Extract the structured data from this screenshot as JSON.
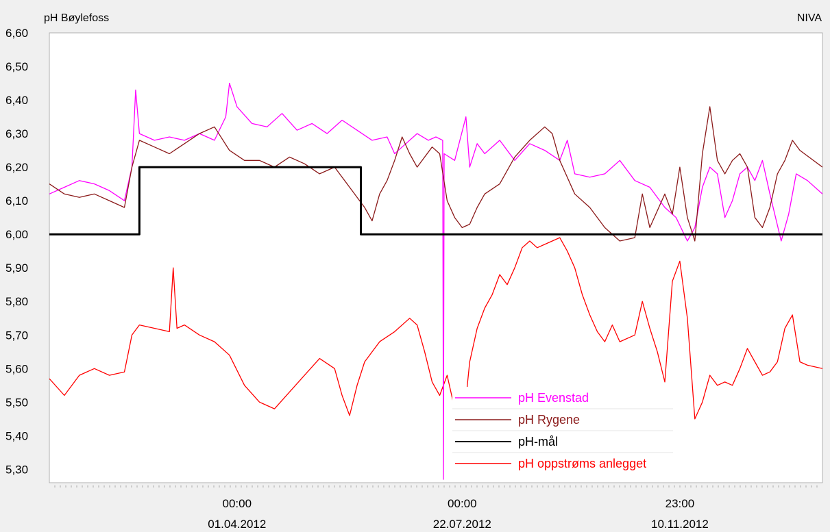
{
  "header": {
    "left_label": "pH Bøylefoss",
    "right_label": "NIVA"
  },
  "chart_data": {
    "type": "line",
    "ylim": [
      5.26,
      6.6
    ],
    "yticks": [
      "6,60",
      "6,50",
      "6,40",
      "6,30",
      "6,20",
      "6,10",
      "6,00",
      "5,90",
      "5,80",
      "5,70",
      "5,60",
      "5,50",
      "5,40",
      "5,30"
    ],
    "ytick_values": [
      6.6,
      6.5,
      6.4,
      6.3,
      6.2,
      6.1,
      6.0,
      5.9,
      5.8,
      5.7,
      5.6,
      5.5,
      5.4,
      5.3
    ],
    "xlim": [
      0,
      100
    ],
    "xticks": [
      {
        "x": 25,
        "time": "00:00",
        "date": "01.04.2012"
      },
      {
        "x": 55,
        "time": "00:00",
        "date": "22.07.2012"
      },
      {
        "x": 84,
        "time": "23:00",
        "date": "10.11.2012"
      }
    ],
    "grid": false,
    "legend_position": "bottom-center",
    "series": [
      {
        "name": "pH Evenstad",
        "color": "#ff00ff",
        "points": [
          [
            0,
            6.12
          ],
          [
            2,
            6.14
          ],
          [
            4,
            6.16
          ],
          [
            6,
            6.15
          ],
          [
            8,
            6.13
          ],
          [
            10,
            6.1
          ],
          [
            11,
            6.2
          ],
          [
            11.5,
            6.43
          ],
          [
            12,
            6.3
          ],
          [
            14,
            6.28
          ],
          [
            16,
            6.29
          ],
          [
            18,
            6.28
          ],
          [
            20,
            6.3
          ],
          [
            22,
            6.28
          ],
          [
            23.5,
            6.35
          ],
          [
            24,
            6.45
          ],
          [
            25,
            6.38
          ],
          [
            27,
            6.33
          ],
          [
            29,
            6.32
          ],
          [
            31,
            6.36
          ],
          [
            33,
            6.31
          ],
          [
            35,
            6.33
          ],
          [
            37,
            6.3
          ],
          [
            39,
            6.34
          ],
          [
            41,
            6.31
          ],
          [
            43,
            6.28
          ],
          [
            45,
            6.29
          ],
          [
            46,
            6.24
          ],
          [
            47,
            6.26
          ],
          [
            49,
            6.3
          ],
          [
            50.5,
            6.28
          ],
          [
            51.5,
            6.29
          ],
          [
            52.4,
            6.28
          ],
          [
            52.5,
            5.27
          ],
          [
            52.6,
            6.24
          ],
          [
            54,
            6.22
          ],
          [
            55.5,
            6.35
          ],
          [
            56,
            6.2
          ],
          [
            57,
            6.27
          ],
          [
            58,
            6.24
          ],
          [
            60,
            6.28
          ],
          [
            62,
            6.22
          ],
          [
            64,
            6.27
          ],
          [
            66,
            6.25
          ],
          [
            68,
            6.22
          ],
          [
            69,
            6.28
          ],
          [
            70,
            6.18
          ],
          [
            72,
            6.17
          ],
          [
            74,
            6.18
          ],
          [
            76,
            6.22
          ],
          [
            78,
            6.16
          ],
          [
            80,
            6.14
          ],
          [
            82,
            6.08
          ],
          [
            83.5,
            6.05
          ],
          [
            85,
            5.98
          ],
          [
            86,
            6.02
          ],
          [
            87,
            6.14
          ],
          [
            88,
            6.2
          ],
          [
            89,
            6.18
          ],
          [
            90,
            6.05
          ],
          [
            91,
            6.1
          ],
          [
            92,
            6.18
          ],
          [
            93,
            6.2
          ],
          [
            94,
            6.16
          ],
          [
            95,
            6.22
          ],
          [
            96,
            6.12
          ],
          [
            97.5,
            5.98
          ],
          [
            98.5,
            6.06
          ],
          [
            99.5,
            6.18
          ],
          [
            101,
            6.16
          ],
          [
            103,
            6.12
          ]
        ]
      },
      {
        "name": "pH Rygene",
        "color": "#8b1a1a",
        "points": [
          [
            0,
            6.15
          ],
          [
            2,
            6.12
          ],
          [
            4,
            6.11
          ],
          [
            6,
            6.12
          ],
          [
            8,
            6.1
          ],
          [
            10,
            6.08
          ],
          [
            11,
            6.2
          ],
          [
            12,
            6.28
          ],
          [
            14,
            6.26
          ],
          [
            16,
            6.24
          ],
          [
            18,
            6.27
          ],
          [
            20,
            6.3
          ],
          [
            22,
            6.32
          ],
          [
            24,
            6.25
          ],
          [
            26,
            6.22
          ],
          [
            28,
            6.22
          ],
          [
            30,
            6.2
          ],
          [
            32,
            6.23
          ],
          [
            34,
            6.21
          ],
          [
            36,
            6.18
          ],
          [
            38,
            6.2
          ],
          [
            40,
            6.14
          ],
          [
            42,
            6.08
          ],
          [
            43,
            6.04
          ],
          [
            44,
            6.12
          ],
          [
            45,
            6.16
          ],
          [
            46,
            6.22
          ],
          [
            47,
            6.29
          ],
          [
            48,
            6.24
          ],
          [
            49,
            6.2
          ],
          [
            51,
            6.26
          ],
          [
            52,
            6.24
          ],
          [
            53,
            6.1
          ],
          [
            54,
            6.05
          ],
          [
            55,
            6.02
          ],
          [
            56,
            6.03
          ],
          [
            57,
            6.08
          ],
          [
            58,
            6.12
          ],
          [
            60,
            6.15
          ],
          [
            62,
            6.23
          ],
          [
            64,
            6.28
          ],
          [
            66,
            6.32
          ],
          [
            67,
            6.3
          ],
          [
            68,
            6.22
          ],
          [
            70,
            6.12
          ],
          [
            72,
            6.08
          ],
          [
            74,
            6.02
          ],
          [
            76,
            5.98
          ],
          [
            78,
            5.99
          ],
          [
            79,
            6.12
          ],
          [
            80,
            6.02
          ],
          [
            82,
            6.12
          ],
          [
            83,
            6.06
          ],
          [
            84,
            6.2
          ],
          [
            85,
            6.05
          ],
          [
            86,
            5.98
          ],
          [
            87,
            6.24
          ],
          [
            88,
            6.38
          ],
          [
            89,
            6.22
          ],
          [
            90,
            6.18
          ],
          [
            91,
            6.22
          ],
          [
            92,
            6.24
          ],
          [
            93,
            6.2
          ],
          [
            94,
            6.05
          ],
          [
            95,
            6.02
          ],
          [
            96,
            6.08
          ],
          [
            97,
            6.18
          ],
          [
            98,
            6.22
          ],
          [
            99,
            6.28
          ],
          [
            100,
            6.25
          ],
          [
            103,
            6.2
          ]
        ]
      },
      {
        "name": "pH-mål",
        "color": "#000000",
        "points": [
          [
            0,
            6.0
          ],
          [
            12.0,
            6.0
          ],
          [
            12.0,
            6.2
          ],
          [
            41.5,
            6.2
          ],
          [
            41.5,
            6.0
          ],
          [
            103,
            6.0
          ]
        ]
      },
      {
        "name": "pH oppstrøms anlegget",
        "color": "#ff0000",
        "points": [
          [
            0,
            5.57
          ],
          [
            2,
            5.52
          ],
          [
            4,
            5.58
          ],
          [
            6,
            5.6
          ],
          [
            8,
            5.58
          ],
          [
            10,
            5.59
          ],
          [
            11,
            5.7
          ],
          [
            12,
            5.73
          ],
          [
            14,
            5.72
          ],
          [
            16,
            5.71
          ],
          [
            16.5,
            5.9
          ],
          [
            17,
            5.72
          ],
          [
            18,
            5.73
          ],
          [
            20,
            5.7
          ],
          [
            22,
            5.68
          ],
          [
            24,
            5.64
          ],
          [
            26,
            5.55
          ],
          [
            28,
            5.5
          ],
          [
            30,
            5.48
          ],
          [
            32,
            5.53
          ],
          [
            34,
            5.58
          ],
          [
            36,
            5.63
          ],
          [
            38,
            5.6
          ],
          [
            39,
            5.52
          ],
          [
            40,
            5.46
          ],
          [
            41,
            5.55
          ],
          [
            42,
            5.62
          ],
          [
            44,
            5.68
          ],
          [
            46,
            5.71
          ],
          [
            48,
            5.75
          ],
          [
            49,
            5.73
          ],
          [
            50,
            5.65
          ],
          [
            51,
            5.56
          ],
          [
            52,
            5.52
          ],
          [
            53,
            5.58
          ],
          [
            54,
            5.48
          ],
          [
            55,
            5.4
          ],
          [
            56,
            5.62
          ],
          [
            57,
            5.72
          ],
          [
            58,
            5.78
          ],
          [
            59,
            5.82
          ],
          [
            60,
            5.88
          ],
          [
            61,
            5.85
          ],
          [
            62,
            5.9
          ],
          [
            63,
            5.96
          ],
          [
            64,
            5.98
          ],
          [
            65,
            5.96
          ],
          [
            66,
            5.97
          ],
          [
            68,
            5.99
          ],
          [
            69,
            5.95
          ],
          [
            70,
            5.9
          ],
          [
            71,
            5.82
          ],
          [
            72,
            5.76
          ],
          [
            73,
            5.71
          ],
          [
            74,
            5.68
          ],
          [
            75,
            5.73
          ],
          [
            76,
            5.68
          ],
          [
            78,
            5.7
          ],
          [
            79,
            5.8
          ],
          [
            80,
            5.72
          ],
          [
            81,
            5.65
          ],
          [
            82,
            5.56
          ],
          [
            83,
            5.86
          ],
          [
            84,
            5.92
          ],
          [
            85,
            5.75
          ],
          [
            86,
            5.45
          ],
          [
            87,
            5.5
          ],
          [
            88,
            5.58
          ],
          [
            89,
            5.55
          ],
          [
            90,
            5.56
          ],
          [
            91,
            5.55
          ],
          [
            92,
            5.6
          ],
          [
            93,
            5.66
          ],
          [
            94,
            5.62
          ],
          [
            95,
            5.58
          ],
          [
            96,
            5.59
          ],
          [
            97,
            5.62
          ],
          [
            98,
            5.72
          ],
          [
            99,
            5.76
          ],
          [
            100,
            5.62
          ],
          [
            101,
            5.61
          ],
          [
            103,
            5.6
          ]
        ]
      }
    ]
  }
}
